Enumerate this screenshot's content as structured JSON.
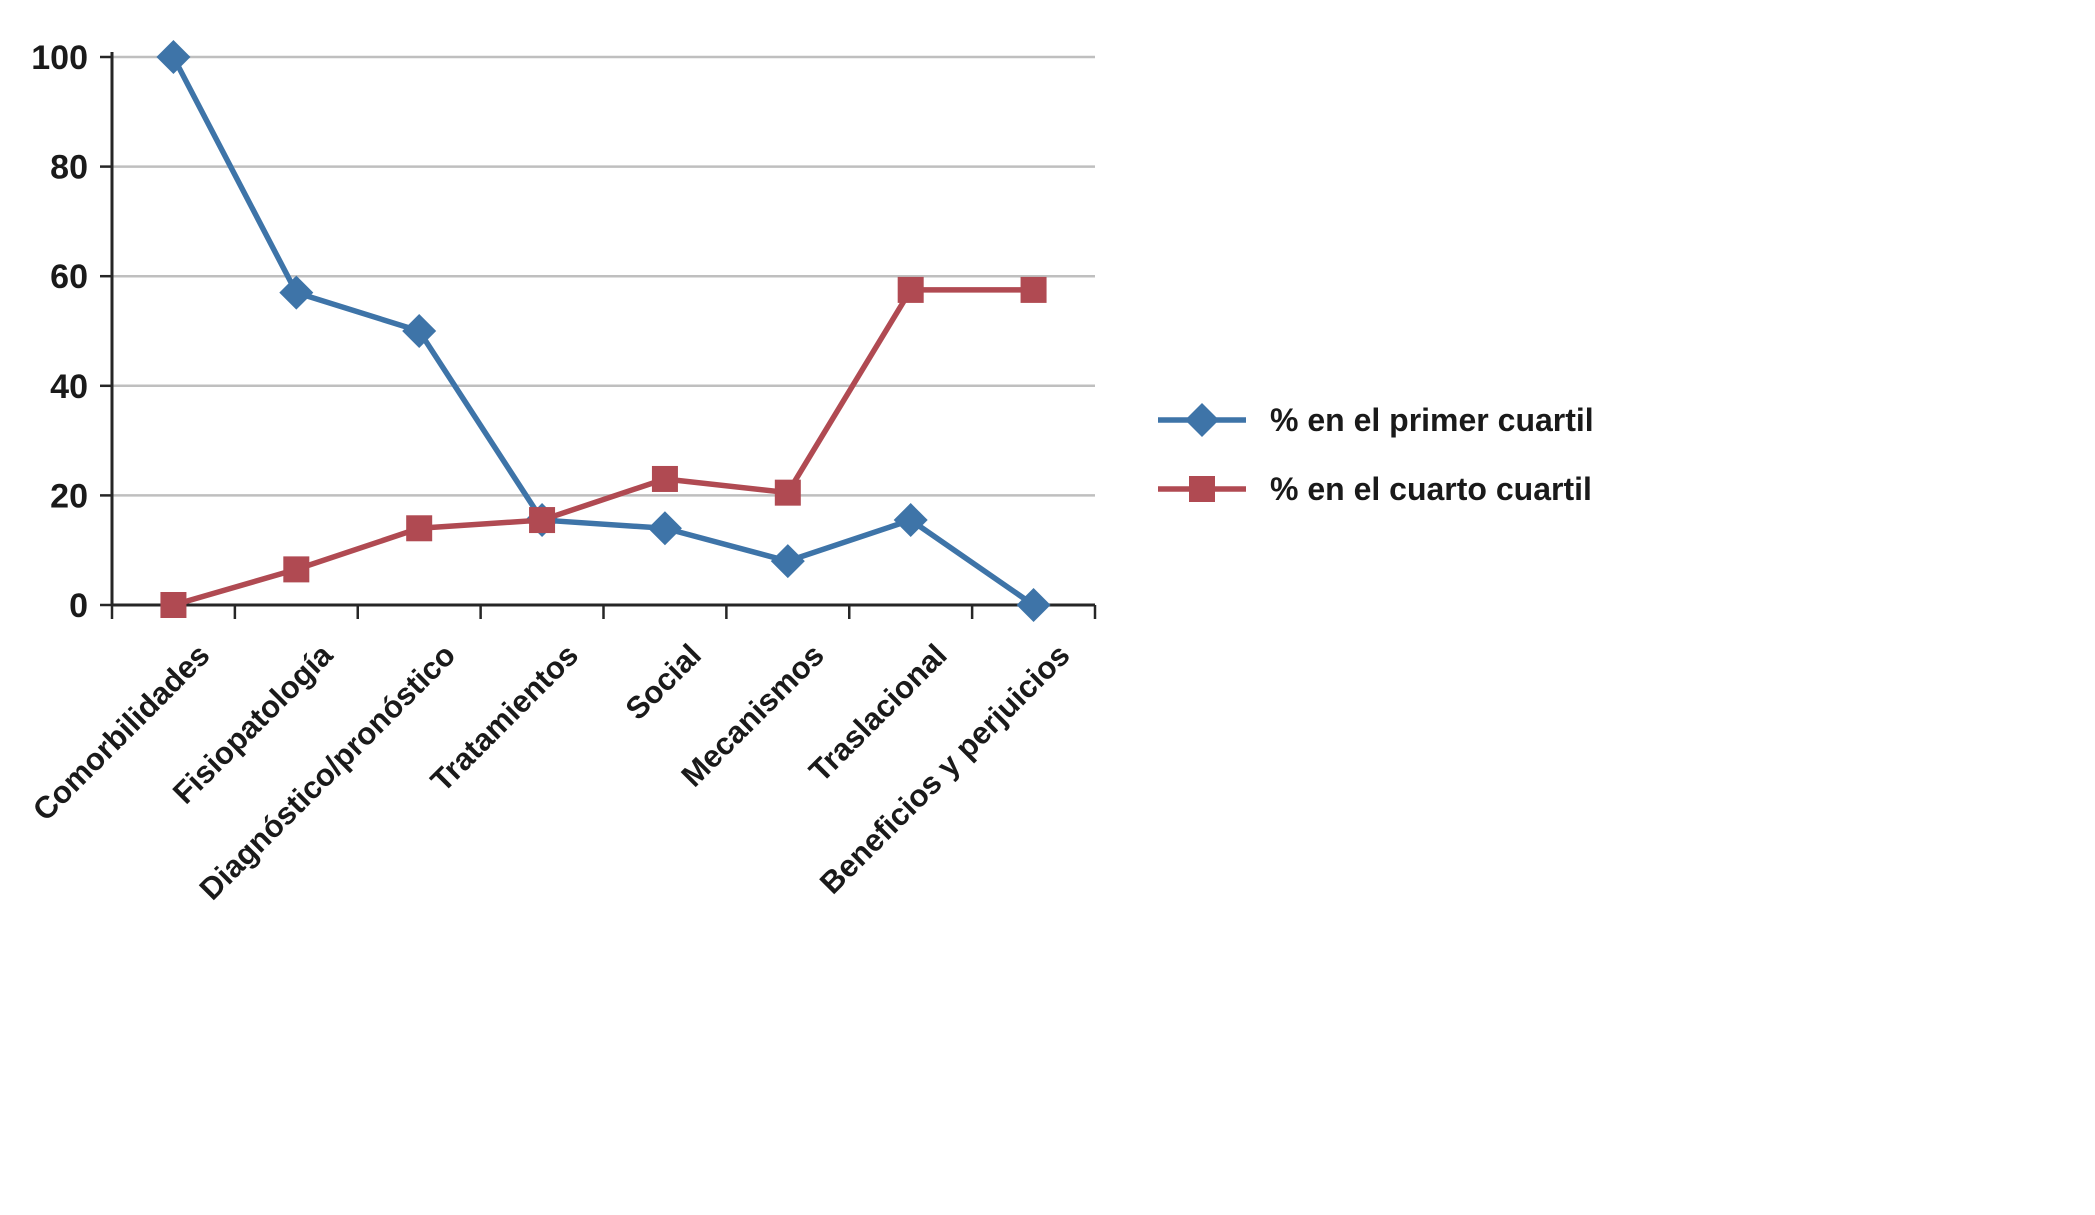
{
  "chart_data": {
    "type": "line",
    "categories": [
      "Comorbilidades",
      "Fisiopatología",
      "Diagnóstico/pronóstico",
      "Tratamientos",
      "Social",
      "Mecanismos",
      "Traslacional",
      "Beneficios y perjuicios"
    ],
    "series": [
      {
        "name": "% en el primer cuartil",
        "color": "#3E74A8",
        "marker": "diamond",
        "values": [
          100,
          57,
          50,
          15.5,
          14,
          8,
          15.5,
          0
        ]
      },
      {
        "name": "% en el cuarto cuartil",
        "color": "#B04A52",
        "marker": "square",
        "values": [
          0,
          6.5,
          14,
          15.5,
          23,
          20.5,
          57.5,
          57.5
        ]
      }
    ],
    "title": "",
    "xlabel": "",
    "ylabel": "",
    "ylim": [
      0,
      100
    ],
    "yticks": [
      0,
      20,
      40,
      60,
      80,
      100
    ],
    "grid": true,
    "legend_position": "right"
  },
  "style": {
    "gridline_color": "#BFBFBF",
    "axis_color": "#262626",
    "tick_label_color": "#1a1a1a",
    "background": "#FFFFFF"
  }
}
